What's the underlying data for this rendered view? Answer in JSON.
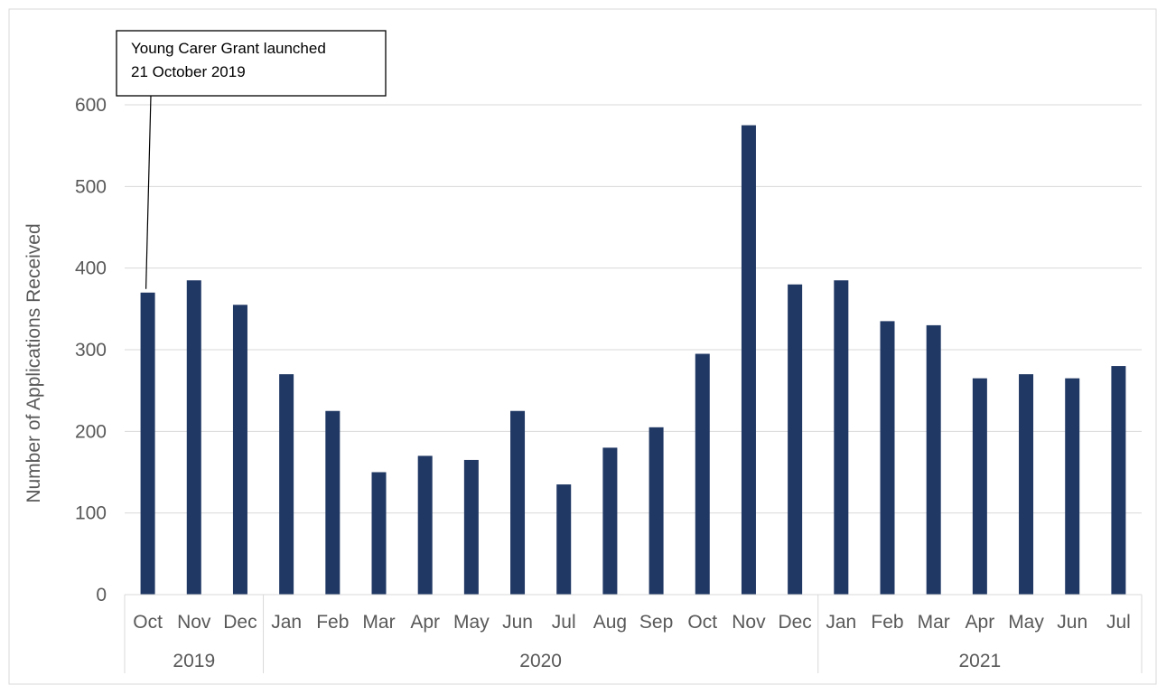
{
  "chart_data": {
    "type": "bar",
    "title": "",
    "xlabel": "",
    "ylabel": "Number of Applications Received",
    "ylim": [
      0,
      600
    ],
    "yticks": [
      0,
      100,
      200,
      300,
      400,
      500,
      600
    ],
    "grid": true,
    "legend": "none",
    "categories": [
      "Oct",
      "Nov",
      "Dec",
      "Jan",
      "Feb",
      "Mar",
      "Apr",
      "May",
      "Jun",
      "Jul",
      "Aug",
      "Sep",
      "Oct",
      "Nov",
      "Dec",
      "Jan",
      "Feb",
      "Mar",
      "Apr",
      "May",
      "Jun",
      "Jul"
    ],
    "years": [
      {
        "label": "2019",
        "count": 3
      },
      {
        "label": "2020",
        "count": 12
      },
      {
        "label": "2021",
        "count": 7
      }
    ],
    "values": [
      370,
      385,
      355,
      270,
      225,
      150,
      170,
      165,
      225,
      135,
      180,
      205,
      295,
      575,
      380,
      385,
      335,
      330,
      265,
      270,
      265,
      280
    ],
    "bar_color": "#203864",
    "annotations": [
      {
        "text_lines": [
          "Young Carer Grant launched",
          "21 October 2019"
        ],
        "category_index": 0
      }
    ]
  }
}
